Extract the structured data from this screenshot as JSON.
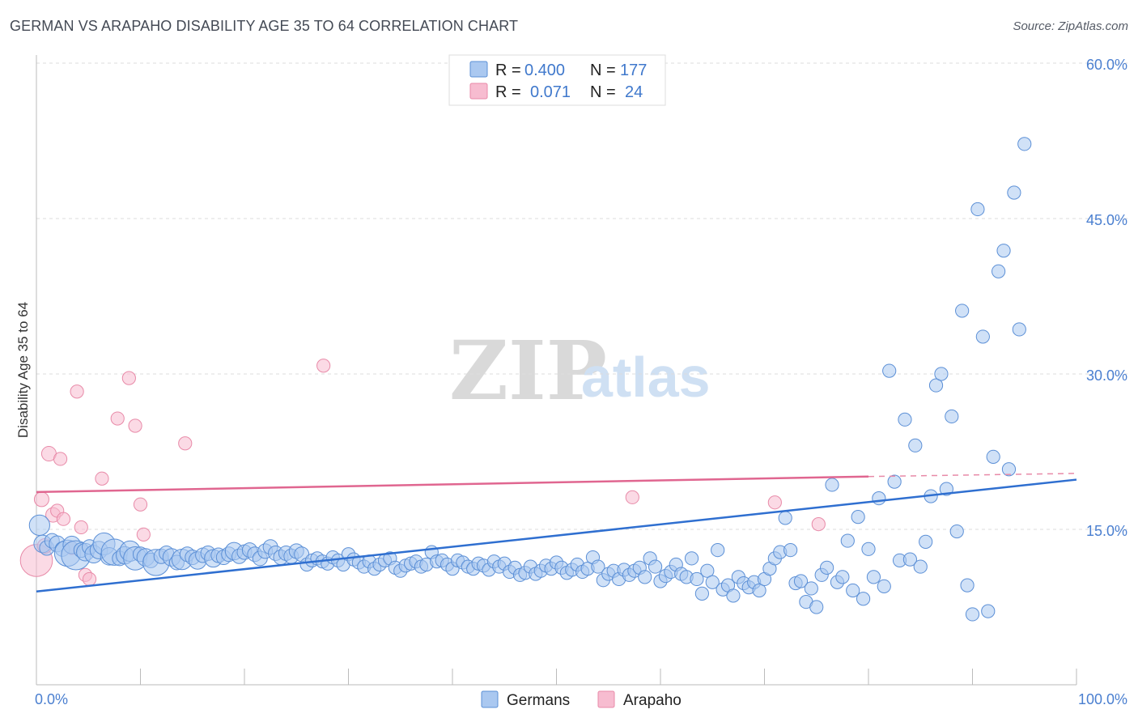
{
  "header": {
    "title": "GERMAN VS ARAPAHO DISABILITY AGE 35 TO 64 CORRELATION CHART",
    "source": "Source: ZipAtlas.com"
  },
  "watermark": {
    "zip": "ZIP",
    "atlas": "atlas"
  },
  "colors": {
    "german_fill": "#aac8f0",
    "german_stroke": "#5b8fd6",
    "german_line": "#2f6fd0",
    "arapaho_fill": "#f7bcd0",
    "arapaho_stroke": "#e88aa8",
    "arapaho_line": "#e06690",
    "grid": "#dddddd",
    "axis_text": "#4a7fd0"
  },
  "legend": {
    "rows": [
      {
        "r_label": "R =",
        "r_value": "0.400",
        "n_label": "N =",
        "n_value": "177"
      },
      {
        "r_label": "R =",
        "r_value": "0.071",
        "n_label": "N =",
        "n_value": "24"
      }
    ]
  },
  "chart_data": {
    "type": "scatter",
    "title": "GERMAN VS ARAPAHO DISABILITY AGE 35 TO 64 CORRELATION CHART",
    "xlabel": "",
    "ylabel": "Disability Age 35 to 64",
    "xlim": [
      0,
      100
    ],
    "ylim": [
      0,
      60
    ],
    "x_tick_labels": [
      "0.0%",
      "100.0%"
    ],
    "y_ticks": [
      15,
      30,
      45,
      60
    ],
    "y_tick_labels": [
      "15.0%",
      "30.0%",
      "45.0%",
      "60.0%"
    ],
    "legend_entries": [
      "Germans",
      "Arapaho"
    ],
    "series": [
      {
        "name": "Germans",
        "r": 0.4,
        "n": 177,
        "trend": {
          "x": [
            0,
            100
          ],
          "y": [
            9.0,
            19.8
          ]
        },
        "points": [
          [
            0.3,
            15.4,
            1.4
          ],
          [
            0.6,
            13.6,
            1.2
          ],
          [
            1.0,
            13.2,
            1.0
          ],
          [
            1.5,
            13.9,
            1.0
          ],
          [
            2.0,
            13.6,
            1.1
          ],
          [
            2.5,
            13.1,
            1.0
          ],
          [
            3.0,
            12.7,
            1.8
          ],
          [
            3.4,
            13.5,
            1.2
          ],
          [
            3.8,
            12.5,
            2.0
          ],
          [
            4.3,
            13.0,
            1.0
          ],
          [
            4.7,
            12.8,
            1.2
          ],
          [
            5.1,
            13.3,
            1.0
          ],
          [
            5.5,
            12.6,
            1.2
          ],
          [
            6.0,
            13.0,
            1.2
          ],
          [
            6.5,
            13.6,
            1.5
          ],
          [
            7.0,
            12.4,
            1.2
          ],
          [
            7.5,
            12.8,
            1.8
          ],
          [
            8.0,
            12.2,
            1.0
          ],
          [
            8.5,
            12.5,
            1.2
          ],
          [
            9.0,
            12.9,
            1.4
          ],
          [
            9.5,
            12.2,
            1.6
          ],
          [
            10.0,
            12.6,
            1.0
          ],
          [
            10.5,
            12.3,
            1.2
          ],
          [
            11.0,
            12.0,
            1.0
          ],
          [
            11.5,
            11.8,
            1.8
          ],
          [
            12.0,
            12.4,
            1.0
          ],
          [
            12.5,
            12.7,
            1.0
          ],
          [
            13.0,
            12.3,
            1.2
          ],
          [
            13.5,
            11.8,
            1.0
          ],
          [
            14.0,
            12.1,
            1.4
          ],
          [
            14.5,
            12.6,
            1.0
          ],
          [
            15.0,
            12.3,
            1.0
          ],
          [
            15.5,
            12.0,
            1.2
          ],
          [
            16.0,
            12.5,
            1.0
          ],
          [
            16.5,
            12.7,
            1.0
          ],
          [
            17.0,
            12.2,
            1.2
          ],
          [
            17.5,
            12.5,
            1.0
          ],
          [
            18.0,
            12.3,
            1.0
          ],
          [
            18.5,
            12.6,
            1.0
          ],
          [
            19.0,
            12.9,
            1.2
          ],
          [
            19.5,
            12.4,
            1.0
          ],
          [
            20.0,
            12.8,
            1.0
          ],
          [
            20.5,
            13.0,
            1.0
          ],
          [
            21.0,
            12.6,
            1.0
          ],
          [
            21.5,
            12.2,
            1.0
          ],
          [
            22.0,
            12.9,
            1.0
          ],
          [
            22.5,
            13.3,
            1.0
          ],
          [
            23.0,
            12.7,
            1.0
          ],
          [
            23.5,
            12.3,
            1.0
          ],
          [
            24.0,
            12.7,
            1.0
          ],
          [
            24.5,
            12.4,
            1.0
          ],
          [
            25.0,
            12.9,
            1.0
          ],
          [
            25.5,
            12.6,
            1.0
          ],
          [
            26.0,
            11.6,
            0.9
          ],
          [
            26.5,
            12.0,
            0.9
          ],
          [
            27.0,
            12.2,
            0.9
          ],
          [
            27.5,
            11.9,
            0.9
          ],
          [
            28.0,
            11.7,
            0.9
          ],
          [
            28.5,
            12.3,
            0.9
          ],
          [
            29.0,
            12.0,
            0.9
          ],
          [
            29.5,
            11.6,
            0.9
          ],
          [
            30.0,
            12.6,
            0.9
          ],
          [
            30.5,
            12.1,
            0.9
          ],
          [
            31.0,
            11.8,
            0.9
          ],
          [
            31.5,
            11.4,
            0.9
          ],
          [
            32.0,
            11.9,
            0.9
          ],
          [
            32.5,
            11.2,
            0.9
          ],
          [
            33.0,
            11.6,
            0.9
          ],
          [
            33.5,
            12.0,
            0.9
          ],
          [
            34.0,
            12.2,
            0.9
          ],
          [
            34.5,
            11.3,
            0.9
          ],
          [
            35.0,
            11.0,
            0.9
          ],
          [
            35.5,
            11.5,
            0.9
          ],
          [
            36.0,
            11.7,
            0.9
          ],
          [
            36.5,
            11.9,
            0.9
          ],
          [
            37.0,
            11.4,
            0.9
          ],
          [
            37.5,
            11.6,
            0.9
          ],
          [
            38.0,
            12.8,
            0.9
          ],
          [
            38.5,
            11.9,
            0.9
          ],
          [
            39.0,
            12.0,
            0.9
          ],
          [
            39.5,
            11.6,
            0.9
          ],
          [
            40.0,
            11.2,
            0.9
          ],
          [
            40.5,
            12.0,
            0.9
          ],
          [
            41.0,
            11.8,
            0.9
          ],
          [
            41.5,
            11.4,
            0.9
          ],
          [
            42.0,
            11.2,
            0.9
          ],
          [
            42.5,
            11.7,
            0.9
          ],
          [
            43.0,
            11.5,
            0.9
          ],
          [
            43.5,
            11.1,
            0.9
          ],
          [
            44.0,
            11.9,
            0.9
          ],
          [
            44.5,
            11.4,
            0.9
          ],
          [
            45.0,
            11.7,
            0.9
          ],
          [
            45.5,
            10.9,
            0.9
          ],
          [
            46.0,
            11.3,
            0.9
          ],
          [
            46.5,
            10.6,
            0.9
          ],
          [
            47.0,
            10.8,
            0.9
          ],
          [
            47.5,
            11.4,
            0.9
          ],
          [
            48.0,
            10.7,
            0.9
          ],
          [
            48.5,
            11.0,
            0.9
          ],
          [
            49.0,
            11.5,
            0.9
          ],
          [
            49.5,
            11.2,
            0.9
          ],
          [
            50.0,
            11.8,
            0.9
          ],
          [
            50.5,
            11.3,
            0.9
          ],
          [
            51.0,
            10.8,
            0.9
          ],
          [
            51.5,
            11.1,
            0.9
          ],
          [
            52.0,
            11.6,
            0.9
          ],
          [
            52.5,
            10.9,
            0.9
          ],
          [
            53.0,
            11.2,
            0.9
          ],
          [
            53.5,
            12.3,
            0.9
          ],
          [
            54.0,
            11.4,
            0.9
          ],
          [
            54.5,
            10.1,
            0.9
          ],
          [
            55.0,
            10.7,
            0.9
          ],
          [
            55.5,
            11.0,
            0.9
          ],
          [
            56.0,
            10.2,
            0.9
          ],
          [
            56.5,
            11.1,
            0.9
          ],
          [
            57.0,
            10.6,
            0.9
          ],
          [
            57.5,
            11.0,
            0.9
          ],
          [
            58.0,
            11.3,
            0.9
          ],
          [
            58.5,
            10.4,
            0.9
          ],
          [
            59.0,
            12.2,
            0.9
          ],
          [
            59.5,
            11.4,
            0.9
          ],
          [
            60.0,
            10.0,
            0.9
          ],
          [
            60.5,
            10.5,
            0.9
          ],
          [
            61.0,
            10.9,
            0.9
          ],
          [
            61.5,
            11.6,
            0.9
          ],
          [
            62.0,
            10.7,
            0.9
          ],
          [
            62.5,
            10.4,
            0.9
          ],
          [
            63.0,
            12.2,
            0.9
          ],
          [
            63.5,
            10.2,
            0.9
          ],
          [
            64.0,
            8.8,
            0.9
          ],
          [
            64.5,
            11.0,
            0.9
          ],
          [
            65.0,
            9.9,
            0.9
          ],
          [
            65.5,
            13.0,
            0.9
          ],
          [
            66.0,
            9.2,
            0.9
          ],
          [
            66.5,
            9.6,
            0.9
          ],
          [
            67.0,
            8.6,
            0.9
          ],
          [
            67.5,
            10.4,
            0.9
          ],
          [
            68.0,
            9.8,
            0.9
          ],
          [
            68.5,
            9.4,
            0.9
          ],
          [
            69.0,
            9.9,
            0.9
          ],
          [
            69.5,
            9.1,
            0.9
          ],
          [
            70.0,
            10.2,
            0.9
          ],
          [
            70.5,
            11.2,
            0.9
          ],
          [
            71.0,
            12.2,
            0.9
          ],
          [
            71.5,
            12.8,
            0.9
          ],
          [
            72.0,
            16.1,
            0.9
          ],
          [
            72.5,
            13.0,
            0.9
          ],
          [
            73.0,
            9.8,
            0.9
          ],
          [
            73.5,
            10.0,
            0.9
          ],
          [
            74.0,
            8.0,
            0.9
          ],
          [
            74.5,
            9.3,
            0.9
          ],
          [
            75.0,
            7.5,
            0.9
          ],
          [
            75.5,
            10.6,
            0.9
          ],
          [
            76.0,
            11.3,
            0.9
          ],
          [
            76.5,
            19.3,
            0.9
          ],
          [
            77.0,
            9.9,
            0.9
          ],
          [
            77.5,
            10.4,
            0.9
          ],
          [
            78.0,
            13.9,
            0.9
          ],
          [
            78.5,
            9.1,
            0.9
          ],
          [
            79.0,
            16.2,
            0.9
          ],
          [
            79.5,
            8.3,
            0.9
          ],
          [
            80.0,
            13.1,
            0.9
          ],
          [
            80.5,
            10.4,
            0.9
          ],
          [
            81.0,
            18.0,
            0.9
          ],
          [
            81.5,
            9.5,
            0.9
          ],
          [
            82.0,
            30.3,
            0.9
          ],
          [
            82.5,
            19.6,
            0.9
          ],
          [
            83.0,
            12.0,
            0.9
          ],
          [
            83.5,
            25.6,
            0.9
          ],
          [
            84.0,
            12.1,
            0.9
          ],
          [
            84.5,
            23.1,
            0.9
          ],
          [
            85.0,
            11.4,
            0.9
          ],
          [
            85.5,
            13.8,
            0.9
          ],
          [
            86.0,
            18.2,
            0.9
          ],
          [
            86.5,
            28.9,
            0.9
          ],
          [
            87.0,
            30.0,
            0.9
          ],
          [
            87.5,
            18.9,
            0.9
          ],
          [
            88.0,
            25.9,
            0.9
          ],
          [
            88.5,
            14.8,
            0.9
          ],
          [
            89.0,
            36.1,
            0.9
          ],
          [
            89.5,
            9.6,
            0.9
          ],
          [
            90.0,
            6.8,
            0.9
          ],
          [
            90.5,
            45.9,
            0.9
          ],
          [
            91.0,
            33.6,
            0.9
          ],
          [
            91.5,
            7.1,
            0.9
          ],
          [
            92.0,
            22.0,
            0.9
          ],
          [
            92.5,
            39.9,
            0.9
          ],
          [
            93.0,
            41.9,
            0.9
          ],
          [
            93.5,
            20.8,
            0.9
          ],
          [
            94.0,
            47.5,
            0.9
          ],
          [
            94.5,
            34.3,
            0.9
          ],
          [
            95.0,
            52.2,
            0.9
          ]
        ]
      },
      {
        "name": "Arapaho",
        "r": 0.071,
        "n": 24,
        "trend": {
          "x": [
            0,
            80
          ],
          "y": [
            18.6,
            20.1
          ]
        },
        "trend_dashed_extension": {
          "x": [
            80,
            100
          ],
          "y": [
            20.1,
            20.4
          ]
        },
        "points": [
          [
            0.0,
            12.0,
            2.2
          ],
          [
            0.5,
            17.9,
            1.0
          ],
          [
            0.8,
            13.4,
            1.0
          ],
          [
            1.2,
            22.3,
            1.0
          ],
          [
            1.6,
            16.4,
            1.0
          ],
          [
            2.0,
            16.8,
            0.9
          ],
          [
            2.3,
            21.8,
            0.9
          ],
          [
            2.6,
            16.0,
            0.9
          ],
          [
            3.4,
            13.2,
            0.9
          ],
          [
            3.9,
            28.3,
            0.9
          ],
          [
            4.3,
            15.2,
            0.9
          ],
          [
            4.7,
            10.6,
            0.9
          ],
          [
            5.1,
            10.2,
            0.9
          ],
          [
            6.3,
            19.9,
            0.9
          ],
          [
            7.8,
            25.7,
            0.9
          ],
          [
            8.9,
            29.6,
            0.9
          ],
          [
            9.5,
            25.0,
            0.9
          ],
          [
            10.0,
            17.4,
            0.9
          ],
          [
            10.3,
            14.5,
            0.9
          ],
          [
            14.3,
            23.3,
            0.9
          ],
          [
            27.6,
            30.8,
            0.9
          ],
          [
            57.3,
            18.1,
            0.9
          ],
          [
            71.0,
            17.6,
            0.9
          ],
          [
            75.2,
            15.5,
            0.9
          ]
        ]
      }
    ]
  }
}
